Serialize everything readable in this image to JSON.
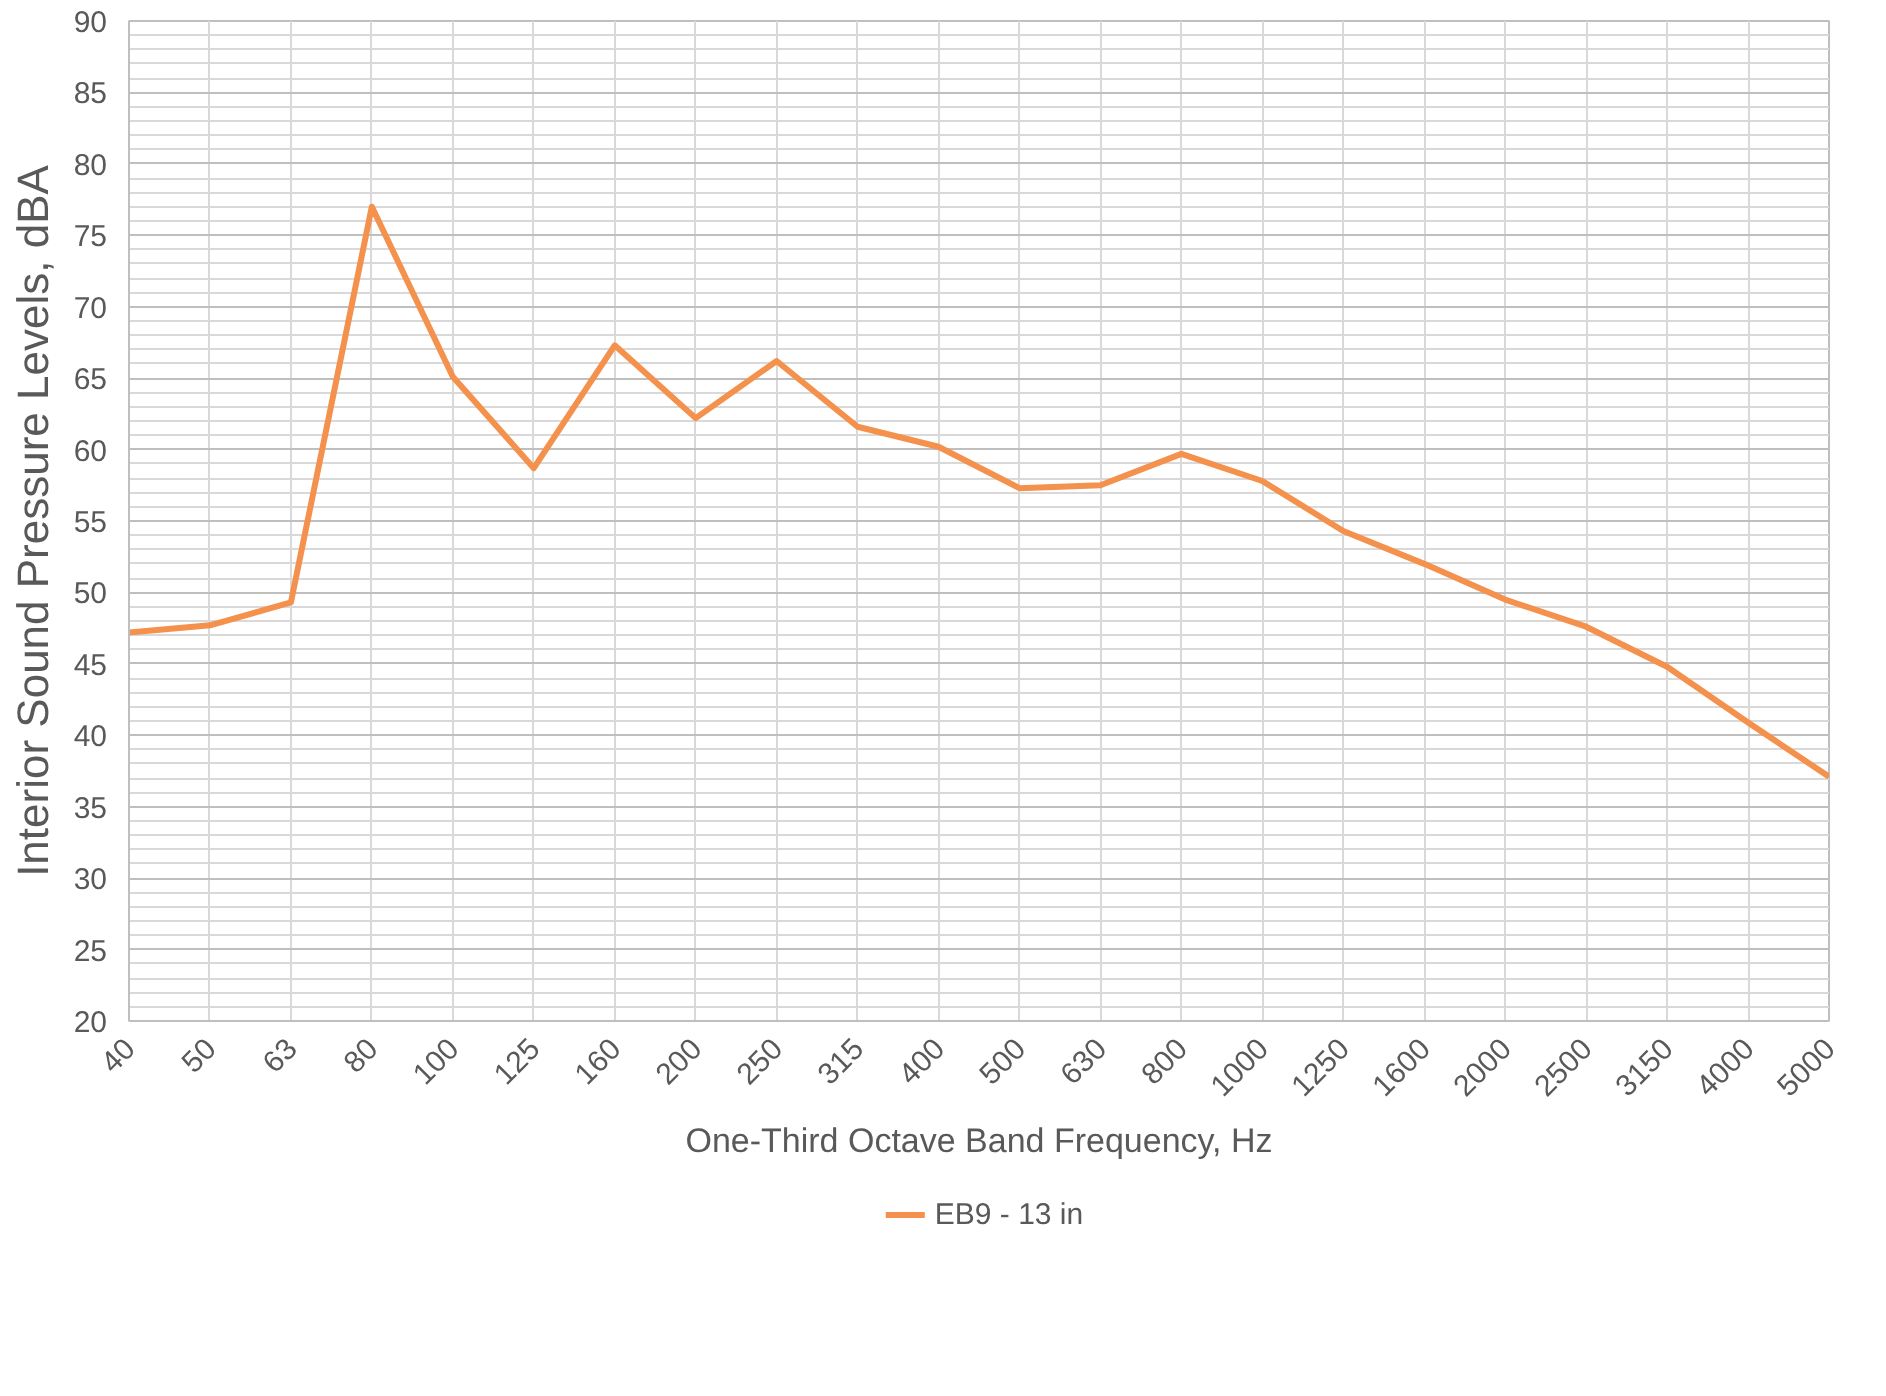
{
  "chart_data": {
    "type": "line",
    "xlabel": "One-Third Octave Band Frequency, Hz",
    "ylabel": "Interior Sound Pressure Levels, dBA",
    "categories": [
      "40",
      "50",
      "63",
      "80",
      "100",
      "125",
      "160",
      "200",
      "250",
      "315",
      "400",
      "500",
      "630",
      "800",
      "1000",
      "1250",
      "1600",
      "2000",
      "2500",
      "3150",
      "4000",
      "5000"
    ],
    "series": [
      {
        "name": "EB9 - 13 in",
        "color": "#f4914c",
        "values": [
          47.2,
          47.7,
          49.3,
          77.0,
          65.1,
          58.7,
          67.3,
          62.2,
          66.2,
          61.6,
          60.2,
          57.3,
          57.5,
          59.7,
          57.8,
          54.3,
          52.0,
          49.5,
          47.6,
          44.8,
          40.9,
          37.1
        ]
      }
    ],
    "ylim": [
      20,
      90
    ],
    "yticks": [
      20,
      25,
      30,
      35,
      40,
      45,
      50,
      55,
      60,
      65,
      70,
      75,
      80,
      85,
      90
    ],
    "grid": true,
    "legend": "bottom",
    "marker": "none",
    "line_style": "solid"
  }
}
